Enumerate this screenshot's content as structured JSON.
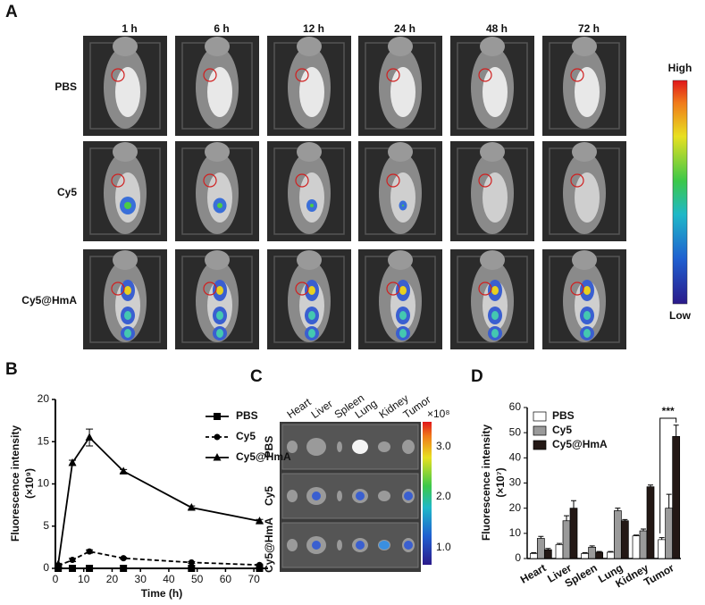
{
  "panel_a": {
    "label": "A",
    "columns": [
      "1 h",
      "6 h",
      "12 h",
      "24 h",
      "48 h",
      "72 h"
    ],
    "rows": [
      "PBS",
      "Cy5",
      "Cy5@HmA"
    ],
    "colorbar": {
      "high": "High",
      "low": "Low"
    }
  },
  "panel_c": {
    "label": "C",
    "organs": [
      "Heart",
      "Liver",
      "Spleen",
      "Lung",
      "Kidney",
      "Tumor"
    ],
    "rows": [
      "PBS",
      "Cy5",
      "Cy5@HmA"
    ],
    "colorbar": {
      "unit": "×10⁸",
      "ticks": [
        "3.0",
        "2.0",
        "1.0"
      ]
    }
  },
  "chart_data": [
    {
      "label": "B",
      "type": "line",
      "x": [
        1,
        6,
        12,
        24,
        48,
        72
      ],
      "xlim": [
        0,
        75
      ],
      "xticks": [
        0,
        10,
        20,
        30,
        40,
        50,
        60,
        70
      ],
      "ylim": [
        0,
        20
      ],
      "yticks": [
        0,
        5,
        10,
        15,
        20
      ],
      "xlabel": "Time (h)",
      "ylabel": "Fluorescence intensity",
      "yunit": "(×10⁹)",
      "legend": "upper right",
      "series": [
        {
          "name": "PBS",
          "color": "#000000",
          "marker": "square",
          "dashed": false,
          "values": [
            0,
            0,
            0,
            0,
            0,
            0
          ],
          "errors": [
            0,
            0,
            0,
            0,
            0,
            0
          ]
        },
        {
          "name": "Cy5",
          "color": "#000000",
          "marker": "circle",
          "dashed": true,
          "values": [
            0.3,
            1.0,
            2.0,
            1.2,
            0.7,
            0.4
          ],
          "errors": [
            0.1,
            0.2,
            0.2,
            0.1,
            0.1,
            0.1
          ]
        },
        {
          "name": "Cy5@HmA",
          "color": "#000000",
          "marker": "triangle",
          "dashed": false,
          "values": [
            0.5,
            12.5,
            15.5,
            11.5,
            7.2,
            5.6
          ],
          "errors": [
            0.1,
            0.3,
            1.0,
            0.2,
            0.2,
            0.2
          ]
        }
      ]
    },
    {
      "label": "D",
      "type": "bar",
      "categories": [
        "Heart",
        "Liver",
        "Spleen",
        "Lung",
        "Kidney",
        "Tumor"
      ],
      "ylim": [
        0,
        60
      ],
      "yticks": [
        0,
        10,
        20,
        30,
        40,
        50,
        60
      ],
      "ylabel": "Fluorescence intensity",
      "yunit": "(×10⁷)",
      "legend": "upper left",
      "annotation": "***",
      "series": [
        {
          "name": "PBS",
          "color": "#ffffff",
          "values": [
            2,
            5.5,
            2,
            2.5,
            9,
            7.5
          ],
          "errors": [
            0.3,
            0.5,
            0.3,
            0.3,
            0.3,
            0.8
          ]
        },
        {
          "name": "Cy5",
          "color": "#9a9a9a",
          "values": [
            8,
            15,
            4.5,
            19,
            11,
            20
          ],
          "errors": [
            0.8,
            2,
            0.5,
            1,
            0.7,
            5.5
          ]
        },
        {
          "name": "Cy5@HmA",
          "color": "#231815",
          "values": [
            3.5,
            20,
            2.5,
            15,
            28.5,
            48.5
          ],
          "errors": [
            0.5,
            3,
            0.3,
            0.5,
            0.7,
            4.5
          ]
        }
      ]
    }
  ]
}
